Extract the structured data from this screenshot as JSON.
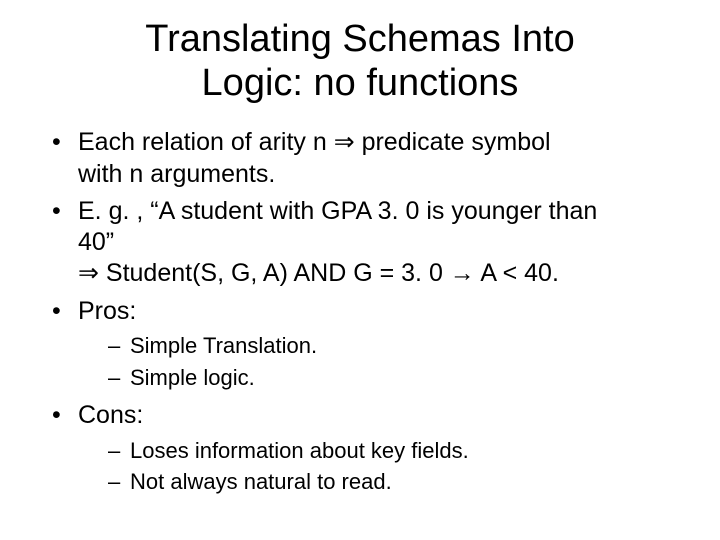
{
  "title_line1": "Translating Schemas Into",
  "title_line2": "Logic: no functions",
  "bullets": [
    {
      "line1": "Each relation of arity n ⇒ predicate symbol",
      "line2": "with n arguments."
    },
    {
      "line1": "E. g. , “A student with GPA 3. 0 is younger than",
      "line2": "40”",
      "line3": "⇒ Student(S, G, A) AND G = 3. 0 → A < 40."
    },
    {
      "line1": "Pros:",
      "subs": [
        "Simple Translation.",
        "Simple logic."
      ]
    },
    {
      "line1": "Cons:",
      "subs": [
        "Loses information about key fields.",
        "Not always natural to read."
      ]
    }
  ],
  "style": {
    "background_color": "#ffffff",
    "text_color": "#000000",
    "title_fontsize": 38,
    "body_fontsize": 25,
    "sub_fontsize": 22,
    "font_family": "Arial"
  }
}
